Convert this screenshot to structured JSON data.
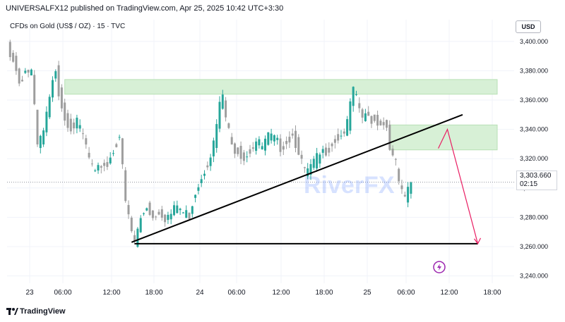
{
  "header": {
    "publisher_line": "UNIVERSALFX12 published on TradingView.com, Apr 25, 2025 10:42 UTC+3:30"
  },
  "chart": {
    "symbol_title": "CFDs on Gold (US$ / OZ) · 15 · TVC",
    "currency": "USD",
    "current_price": "3,303.660",
    "countdown": "02:15",
    "colors": {
      "up": "#26a69a",
      "down": "#9e9e9e",
      "zone": "#d7f0d6",
      "zone_border": "#b7e0b5",
      "trendline": "#000000",
      "arrow": "#e91e63",
      "bolt": "#9c27b0"
    },
    "watermark": "RiverFX",
    "icons": {
      "alert": "bolt-icon"
    }
  },
  "footer": {
    "brand": "TradingView",
    "logo": "tradingview-logo-icon"
  },
  "chart_data": {
    "type": "candlestick",
    "y_ticks": [
      "3,400.000",
      "3,380.000",
      "3,360.000",
      "3,340.000",
      "3,320.000",
      "3,300.000",
      "3,280.000",
      "3,260.000",
      "3,240.000"
    ],
    "x_ticks": [
      "23",
      "06:00",
      "12:00",
      "18:00",
      "24",
      "06:00",
      "12:00",
      "18:00",
      "25",
      "06:00",
      "12:00",
      "18:00"
    ],
    "ylim": [
      3235,
      3410
    ],
    "path_points": [
      [
        0,
        3398
      ],
      [
        2,
        3390
      ],
      [
        4,
        3374
      ],
      [
        6,
        3382
      ],
      [
        8,
        3381
      ],
      [
        10,
        3330
      ],
      [
        12,
        3340
      ],
      [
        14,
        3362
      ],
      [
        16,
        3384
      ],
      [
        17,
        3368
      ],
      [
        19,
        3350
      ],
      [
        21,
        3344
      ],
      [
        23,
        3346
      ],
      [
        25,
        3338
      ],
      [
        27,
        3322
      ],
      [
        29,
        3310
      ],
      [
        31,
        3318
      ],
      [
        33,
        3318
      ],
      [
        35,
        3328
      ],
      [
        37,
        3338
      ],
      [
        38,
        3315
      ],
      [
        39,
        3292
      ],
      [
        41,
        3272
      ],
      [
        42,
        3265
      ],
      [
        44,
        3281
      ],
      [
        46,
        3290
      ],
      [
        48,
        3282
      ],
      [
        50,
        3287
      ],
      [
        52,
        3282
      ],
      [
        54,
        3284
      ],
      [
        56,
        3290
      ],
      [
        58,
        3285
      ],
      [
        60,
        3284
      ],
      [
        62,
        3300
      ],
      [
        64,
        3310
      ],
      [
        66,
        3320
      ],
      [
        68,
        3332
      ],
      [
        70,
        3358
      ],
      [
        71,
        3365
      ],
      [
        72,
        3350
      ],
      [
        74,
        3330
      ],
      [
        76,
        3328
      ],
      [
        78,
        3323
      ],
      [
        80,
        3328
      ],
      [
        82,
        3334
      ],
      [
        84,
        3330
      ],
      [
        86,
        3337
      ],
      [
        88,
        3335
      ],
      [
        90,
        3330
      ],
      [
        92,
        3334
      ],
      [
        94,
        3338
      ],
      [
        96,
        3328
      ],
      [
        98,
        3312
      ],
      [
        100,
        3316
      ],
      [
        102,
        3322
      ],
      [
        104,
        3326
      ],
      [
        106,
        3330
      ],
      [
        108,
        3335
      ],
      [
        110,
        3338
      ],
      [
        112,
        3345
      ],
      [
        113,
        3360
      ],
      [
        114,
        3368
      ],
      [
        115,
        3362
      ],
      [
        117,
        3350
      ],
      [
        119,
        3350
      ],
      [
        121,
        3348
      ],
      [
        123,
        3347
      ],
      [
        125,
        3344
      ],
      [
        126,
        3332
      ],
      [
        127,
        3322
      ],
      [
        128,
        3318
      ],
      [
        129,
        3306
      ],
      [
        130,
        3298
      ],
      [
        131,
        3293
      ],
      [
        132,
        3302
      ],
      [
        133,
        3304
      ]
    ],
    "resistance_zones": [
      {
        "from": 19,
        "to": 155,
        "low": 3364,
        "high": 3374
      },
      {
        "from": 126,
        "to": 155,
        "low": 3326,
        "high": 3343
      }
    ],
    "trendlines": [
      {
        "name": "ascending support",
        "from": [
          41,
          3263
        ],
        "to": [
          150,
          3350
        ]
      },
      {
        "name": "horizontal support",
        "from": [
          42,
          3262
        ],
        "to": [
          155,
          3262
        ]
      }
    ],
    "projection_arrow": [
      [
        142,
        3327
      ],
      [
        145,
        3340
      ],
      [
        155,
        3262
      ]
    ],
    "alert_marker": {
      "x": 136,
      "y": 3246
    }
  }
}
